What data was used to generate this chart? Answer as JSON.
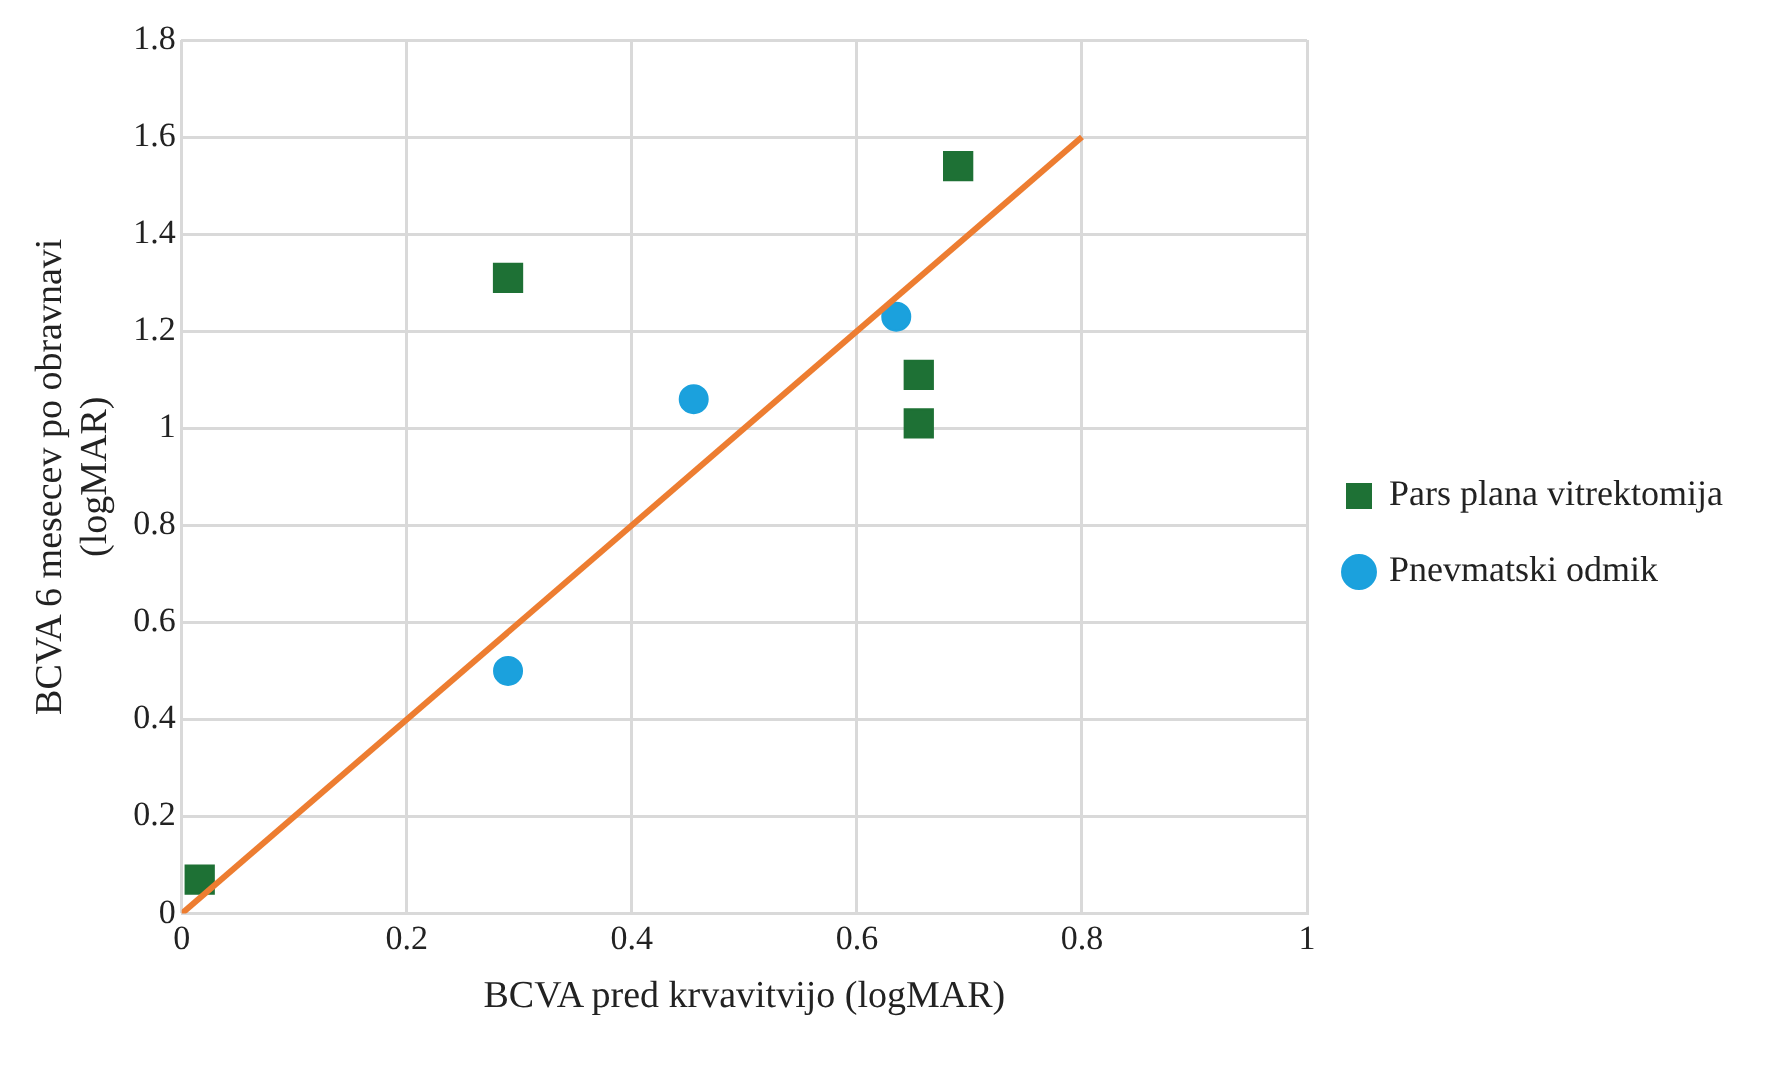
{
  "chart_data": {
    "type": "scatter",
    "xlabel": "BCVA pred krvavitvijo (logMAR)",
    "ylabel": "BCVA 6 mesecev po obravnavi (logMAR)",
    "xlim": [
      0,
      1
    ],
    "xticks": [
      0,
      0.2,
      0.4,
      0.6,
      0.8,
      1
    ],
    "ylim": [
      0,
      1.8
    ],
    "yticks": [
      0,
      0.2,
      0.4,
      0.6,
      0.8,
      1,
      1.2,
      1.4,
      1.6,
      1.8
    ],
    "grid": true,
    "legend": "right",
    "series": [
      {
        "name": "Pars plana vitrektomija",
        "color": "#1e7135",
        "marker": "square",
        "x": [
          0.016,
          0.29,
          0.69,
          0.655,
          0.655
        ],
        "values": [
          0.07,
          1.31,
          1.54,
          1.11,
          1.01
        ]
      },
      {
        "name": "Pnevmatski odmik",
        "color": "#1ba1dd",
        "marker": "circle",
        "x": [
          0.29,
          0.455,
          0.635
        ],
        "values": [
          0.5,
          1.06,
          1.23
        ]
      },
      {
        "type": "line",
        "color": "#ed7d31",
        "marker": "none",
        "x": [
          0,
          0.8
        ],
        "values": [
          0,
          1.6
        ]
      }
    ]
  }
}
